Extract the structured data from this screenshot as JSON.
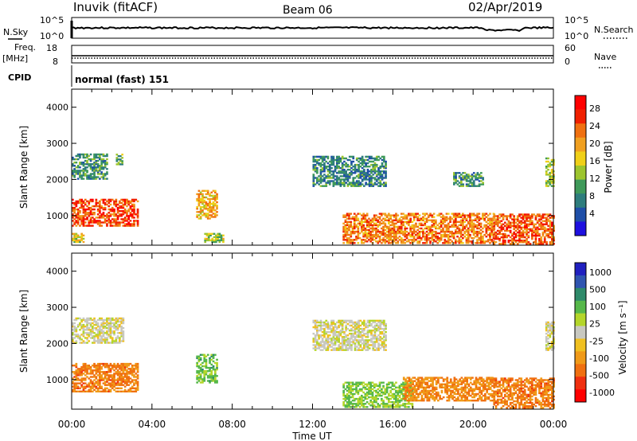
{
  "header": {
    "station": "Inuvik (fitACF)",
    "beam": "Beam 06",
    "date": "02/Apr/2019"
  },
  "left_labels": {
    "nsky": "N.Sky",
    "freq": "Freq.",
    "freq_unit": "[MHz]",
    "cpid": "CPID"
  },
  "right_labels": {
    "nsearch": "N.Search",
    "nave": "Nave"
  },
  "cpid_text": "normal (fast) 151",
  "noise_panel": {
    "left_ticks": [
      "10^5",
      "10^0"
    ],
    "right_ticks": [
      "10^5",
      "10^0"
    ]
  },
  "freq_panel": {
    "left_ticks": [
      "18",
      "8"
    ],
    "right_ticks": [
      "60",
      "0"
    ]
  },
  "colors": {
    "power_scale": [
      "#1e10e0",
      "#1f4fa8",
      "#2e7d7d",
      "#3f9a5a",
      "#9dc52e",
      "#f0d018",
      "#f0a020",
      "#f07010",
      "#f02000",
      "#ff0000"
    ],
    "velocity_scale": [
      "#2020c0",
      "#2f55b0",
      "#2e8a6a",
      "#56b84a",
      "#b4d62a",
      "#c8c8c0",
      "#f0c020",
      "#f09a18",
      "#f07010",
      "#f03010",
      "#ff0000"
    ]
  },
  "chart_data": [
    {
      "type": "heatmap",
      "name": "power",
      "ylabel": "Slant Range [km]",
      "yticks": [
        "1000",
        "2000",
        "3000",
        "4000"
      ],
      "ylim": [
        180,
        4500
      ],
      "xlim": [
        0,
        24
      ],
      "colorbar_label": "Power [dB]",
      "colorbar_ticks": [
        "4",
        "8",
        "12",
        "16",
        "20",
        "24",
        "28"
      ],
      "regions": [
        {
          "t0": 0.0,
          "t1": 3.3,
          "r0": 700,
          "r1": 1450,
          "level": 0.85
        },
        {
          "t0": 0.0,
          "t1": 0.6,
          "r0": 250,
          "r1": 500,
          "level": 0.55
        },
        {
          "t0": 0.0,
          "t1": 1.8,
          "r0": 2000,
          "r1": 2700,
          "level": 0.3
        },
        {
          "t0": 2.2,
          "t1": 2.5,
          "r0": 2400,
          "r1": 2700,
          "level": 0.35
        },
        {
          "t0": 6.2,
          "t1": 7.2,
          "r0": 900,
          "r1": 1700,
          "level": 0.65
        },
        {
          "t0": 6.6,
          "t1": 7.5,
          "r0": 250,
          "r1": 500,
          "level": 0.45
        },
        {
          "t0": 12.0,
          "t1": 15.6,
          "r0": 1800,
          "r1": 2650,
          "level": 0.25
        },
        {
          "t0": 13.5,
          "t1": 21.0,
          "r0": 220,
          "r1": 1050,
          "level": 0.75
        },
        {
          "t0": 21.0,
          "t1": 24.0,
          "r0": 200,
          "r1": 1050,
          "level": 0.8
        },
        {
          "t0": 19.0,
          "t1": 20.5,
          "r0": 1800,
          "r1": 2200,
          "level": 0.3
        },
        {
          "t0": 23.6,
          "t1": 24.0,
          "r0": 1800,
          "r1": 2600,
          "level": 0.45
        }
      ]
    },
    {
      "type": "heatmap",
      "name": "velocity",
      "ylabel": "Slant Range [km]",
      "yticks": [
        "1000",
        "2000",
        "3000",
        "4000"
      ],
      "ylim": [
        180,
        4500
      ],
      "xlim": [
        0,
        24
      ],
      "xticks": [
        "00:00",
        "04:00",
        "08:00",
        "12:00",
        "16:00",
        "20:00",
        "00:00"
      ],
      "xlabel": "Time UT",
      "colorbar_label": "Velocity [m s⁻¹]",
      "colorbar_ticks": [
        "1000",
        "500",
        "100",
        "25",
        "-25",
        "-100",
        "-500",
        "-1000"
      ],
      "regions": [
        {
          "t0": 0.0,
          "t1": 3.3,
          "r0": 650,
          "r1": 1450,
          "level": -0.55
        },
        {
          "t0": 0.0,
          "t1": 2.6,
          "r0": 2000,
          "r1": 2700,
          "level": 0.0
        },
        {
          "t0": 6.2,
          "t1": 7.2,
          "r0": 900,
          "r1": 1700,
          "level": 0.35
        },
        {
          "t0": 12.0,
          "t1": 15.6,
          "r0": 1800,
          "r1": 2650,
          "level": 0.0
        },
        {
          "t0": 13.5,
          "t1": 17.0,
          "r0": 220,
          "r1": 900,
          "level": 0.3
        },
        {
          "t0": 16.5,
          "t1": 21.0,
          "r0": 400,
          "r1": 1050,
          "level": -0.5
        },
        {
          "t0": 21.0,
          "t1": 24.0,
          "r0": 200,
          "r1": 1050,
          "level": -0.55
        },
        {
          "t0": 23.6,
          "t1": 24.0,
          "r0": 1800,
          "r1": 2600,
          "level": 0.0
        }
      ]
    }
  ]
}
